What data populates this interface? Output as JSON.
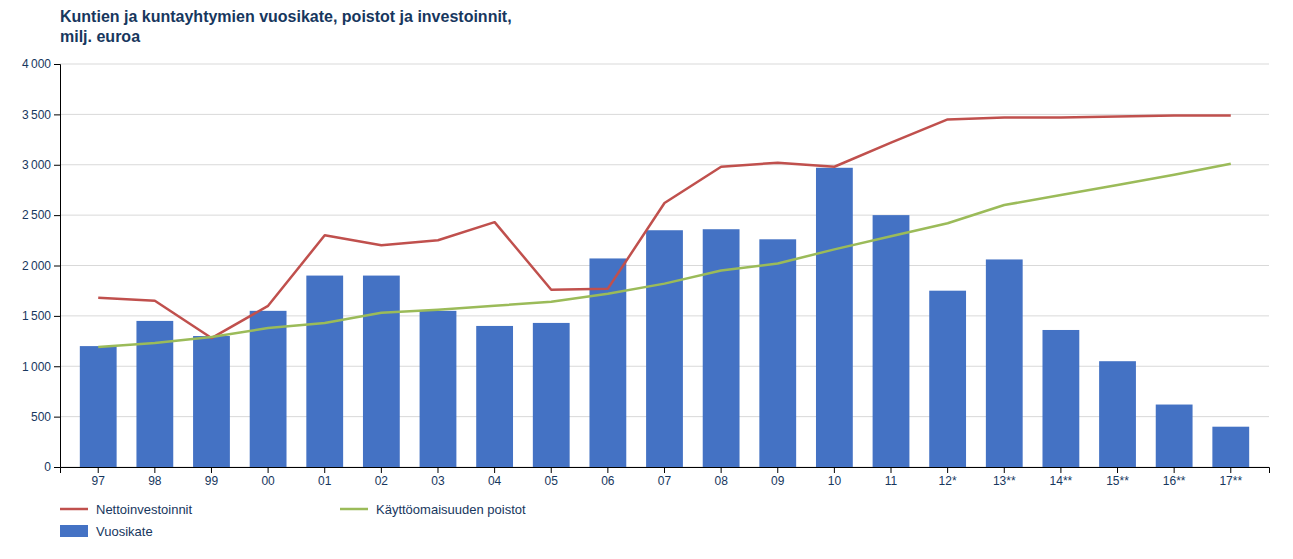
{
  "chart_data": {
    "type": "bar",
    "title": "Kuntien ja kuntayhtymien vuosikate, poistot ja investoinnit,\nmilj. euroa",
    "categories": [
      "97",
      "98",
      "99",
      "00",
      "01",
      "02",
      "03",
      "04",
      "05",
      "06",
      "07",
      "08",
      "09",
      "10",
      "11",
      "12*",
      "13**",
      "14**",
      "15**",
      "16**",
      "17**"
    ],
    "series": [
      {
        "name": "Nettoinvestoinnit",
        "type": "line",
        "color": "#C0504D",
        "values": [
          1680,
          1650,
          1280,
          1600,
          2300,
          2200,
          2250,
          2430,
          1760,
          1770,
          2620,
          2980,
          3020,
          2980,
          3220,
          3450,
          3470,
          3470,
          3480,
          3490,
          3490
        ]
      },
      {
        "name": "Käyttöomaisuuden poistot",
        "type": "line",
        "color": "#9BBB59",
        "values": [
          1190,
          1230,
          1290,
          1380,
          1430,
          1530,
          1560,
          1600,
          1640,
          1720,
          1820,
          1950,
          2020,
          2160,
          2290,
          2420,
          2600,
          2700,
          2800,
          2900,
          3010
        ]
      },
      {
        "name": "Vuosikate",
        "type": "bar",
        "color": "#4472C4",
        "values": [
          1200,
          1450,
          1300,
          1550,
          1900,
          1900,
          1550,
          1400,
          1430,
          2070,
          2350,
          2360,
          2260,
          2970,
          2500,
          1750,
          2060,
          1360,
          1050,
          620,
          400
        ]
      }
    ],
    "ylim": [
      0,
      4000
    ],
    "yticks": [
      0,
      500,
      {
        "value": 1000,
        "label": "1 000"
      },
      {
        "value": 1500,
        "label": "1 500"
      },
      {
        "value": 2000,
        "label": "2 000"
      },
      {
        "value": 2500,
        "label": "2 500"
      },
      {
        "value": 3000,
        "label": "3 000"
      },
      {
        "value": 3500,
        "label": "3 500"
      },
      {
        "value": 4000,
        "label": "4 000"
      }
    ],
    "grid": true,
    "legend": "bottom"
  }
}
